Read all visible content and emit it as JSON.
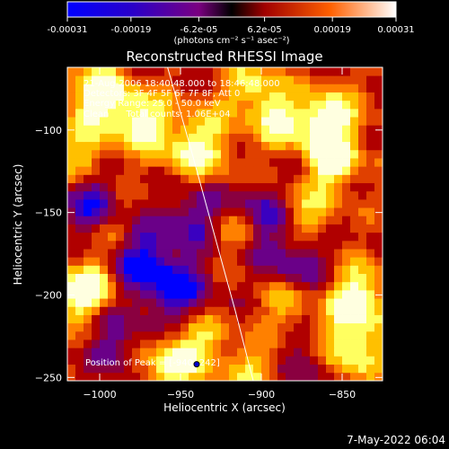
{
  "colorbar": {
    "ticks": [
      "-0.00031",
      "-0.00019",
      "-6.2e-05",
      "6.2e-05",
      "0.00019",
      "0.00031"
    ],
    "tick_values": [
      -0.00031,
      -0.00019,
      -6.2e-05,
      6.2e-05,
      0.00019,
      0.00031
    ],
    "range": [
      -0.00031,
      0.00031
    ],
    "unit_label": "(photons cm⁻² s⁻¹ asec⁻²)"
  },
  "chart_data": {
    "type": "heatmap",
    "title": "Reconstructed RHESSI Image",
    "xlabel": "Heliocentric X (arcsec)",
    "ylabel": "Heliocentric Y (arcsec)",
    "xlim": [
      -1020,
      -825
    ],
    "ylim": [
      -252,
      -62
    ],
    "x_ticks": [
      -1000,
      -950,
      -900,
      -850
    ],
    "y_ticks": [
      -100,
      -150,
      -200,
      -250
    ],
    "x_tick_labels": [
      "−1000",
      "−950",
      "−900",
      "−850"
    ],
    "y_tick_labels": [
      "−100",
      "−150",
      "−200",
      "−250"
    ],
    "colormap": [
      "#0000ff",
      "#3a00c0",
      "#6a0088",
      "#8a0040",
      "#b00000",
      "#e04000",
      "#ff8000",
      "#ffc000",
      "#ffff60",
      "#ffffe0"
    ],
    "peak": [
      -940,
      -242
    ],
    "limb_points": [
      [
        -958,
        -62
      ],
      [
        -944,
        -110
      ],
      [
        -930,
        -160
      ],
      [
        -916,
        -210
      ],
      [
        -905,
        -252
      ]
    ],
    "annotations": [
      "21-Aug-2006 18:40:48.000 to 18:46:48.000",
      "Detectors: 3F 4F 5F 6F 7F 8F, Att 0",
      "Energy Range: 25.0 - 50.0 keV",
      "Clean      Total counts: 1.06E+04"
    ],
    "peak_label": "Position of Peak = [-940,-242]"
  },
  "footer": {
    "timestamp": "7-May-2022 06:04"
  }
}
